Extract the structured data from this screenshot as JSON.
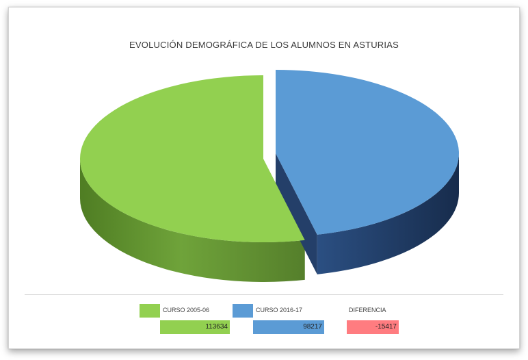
{
  "chart_data": {
    "type": "pie",
    "title": "EVOLUCIÓN DEMOGRÁFICA DE LOS ALUMNOS EN ASTURIAS",
    "categories": [
      "CURSO 2005-06",
      "CURSO 2016-17"
    ],
    "values": [
      113634,
      98217
    ],
    "colors": [
      "#92d050",
      "#5b9bd5"
    ],
    "side_colors": [
      "#5f8f2e",
      "#1f3b64"
    ],
    "style": "3d",
    "exploded_slice": "CURSO 2016-17",
    "legend_placement": "bottom",
    "table": {
      "headers": [
        "CURSO 2005-06",
        "CURSO 2016-17",
        "DIFERENCIA"
      ],
      "values": [
        "113634",
        "98217",
        "-15417"
      ],
      "colors": [
        "#92d050",
        "#5b9bd5",
        "#ff7c80"
      ]
    }
  }
}
